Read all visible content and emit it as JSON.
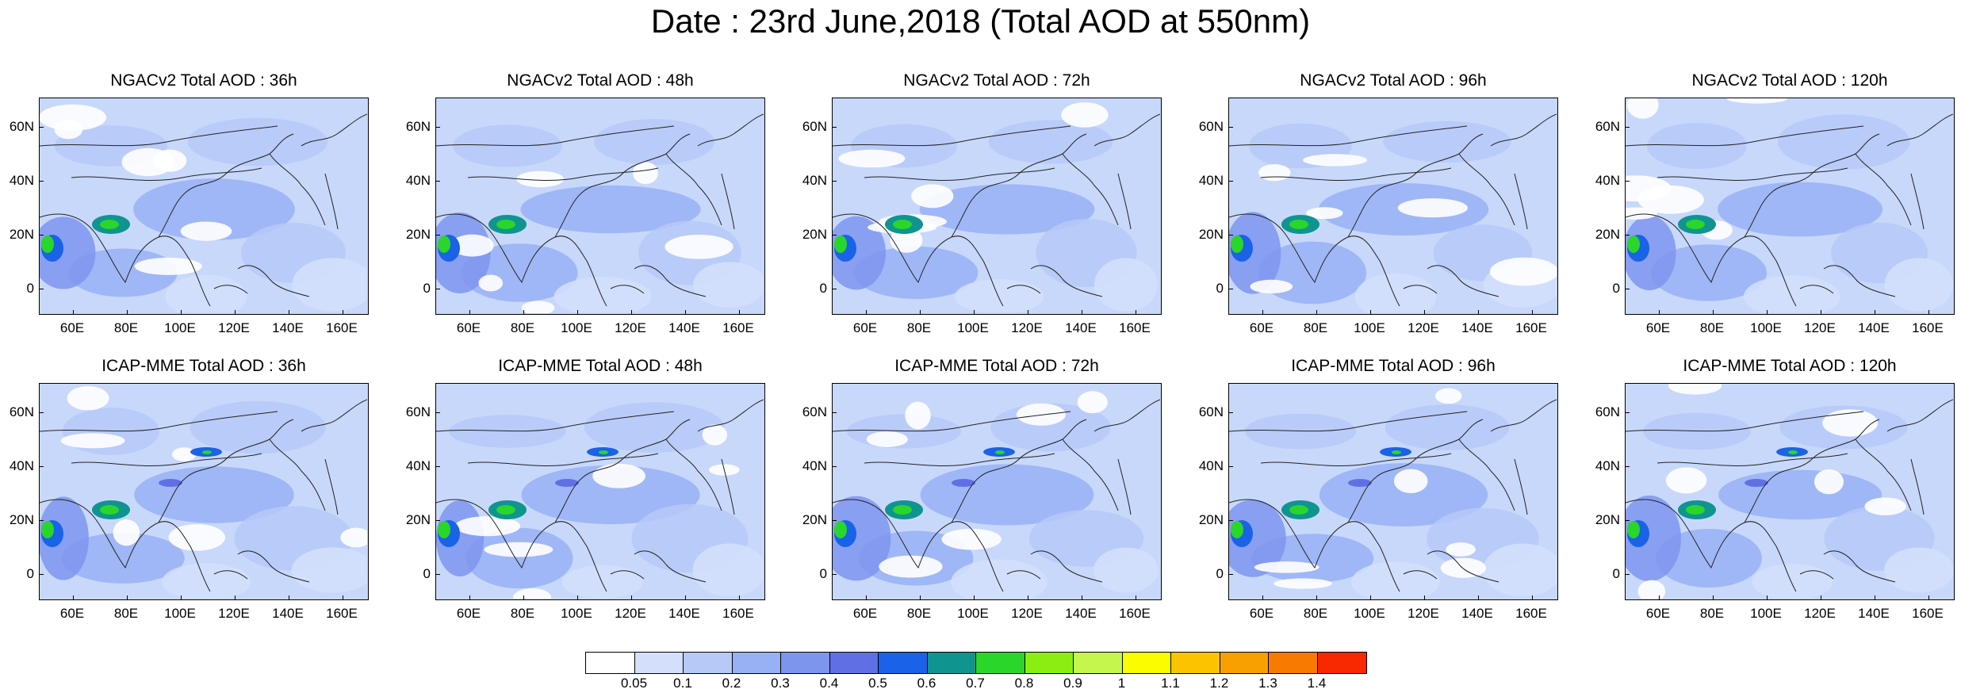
{
  "title": "Date : 23rd June,2018 (Total AOD at 550nm)",
  "panels": [
    {
      "title": "NGACv2 Total AOD : 36h",
      "model": "NGACv2",
      "lead": "36h"
    },
    {
      "title": "NGACv2 Total AOD : 48h",
      "model": "NGACv2",
      "lead": "48h"
    },
    {
      "title": "NGACv2 Total AOD : 72h",
      "model": "NGACv2",
      "lead": "72h"
    },
    {
      "title": "NGACv2 Total AOD : 96h",
      "model": "NGACv2",
      "lead": "96h"
    },
    {
      "title": "NGACv2 Total AOD : 120h",
      "model": "NGACv2",
      "lead": "120h"
    },
    {
      "title": "ICAP-MME Total AOD : 36h",
      "model": "ICAP-MME",
      "lead": "36h"
    },
    {
      "title": "ICAP-MME Total AOD : 48h",
      "model": "ICAP-MME",
      "lead": "48h"
    },
    {
      "title": "ICAP-MME Total AOD : 72h",
      "model": "ICAP-MME",
      "lead": "72h"
    },
    {
      "title": "ICAP-MME Total AOD : 96h",
      "model": "ICAP-MME",
      "lead": "96h"
    },
    {
      "title": "ICAP-MME Total AOD : 120h",
      "model": "ICAP-MME",
      "lead": "120h"
    }
  ],
  "lat_labels": [
    "60N",
    "40N",
    "20N",
    "0"
  ],
  "lon_labels": [
    "60E",
    "80E",
    "100E",
    "120E",
    "140E",
    "160E"
  ],
  "colorbar": {
    "labels": [
      "0.05",
      "0.1",
      "0.2",
      "0.3",
      "0.4",
      "0.5",
      "0.6",
      "0.7",
      "0.8",
      "0.9",
      "1",
      "1.1",
      "1.2",
      "1.3",
      "1.4"
    ],
    "colors": [
      "#ffffff",
      "#d4e0fb",
      "#b6c9f7",
      "#98b1f4",
      "#7e95ee",
      "#6070e4",
      "#1a62e8",
      "#0f9490",
      "#2ad62a",
      "#8aee12",
      "#c4f64e",
      "#fcfc00",
      "#fcc400",
      "#f8a000",
      "#f87a00",
      "#f82800"
    ]
  }
}
